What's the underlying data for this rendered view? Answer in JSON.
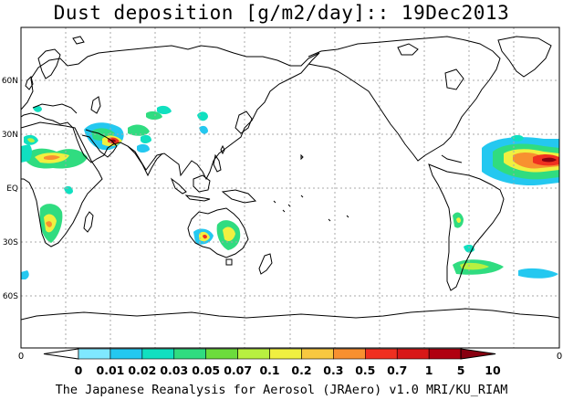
{
  "title": "Dust deposition [g/m2/day]:: 19Dec2013",
  "credit": "The Japanese Reanalysis for Aerosol (JRAero) v1.0 MRI/KU_RIAM",
  "lat_labels": [
    "60N",
    "30N",
    "EQ",
    "30S",
    "60S"
  ],
  "edge_labels": {
    "left": "0",
    "right": "0"
  },
  "colorbar": {
    "labels": [
      "0",
      "0.01",
      "0.02",
      "0.03",
      "0.05",
      "0.07",
      "0.1",
      "0.2",
      "0.3",
      "0.5",
      "0.7",
      "1",
      "5",
      "10"
    ],
    "colors": [
      "#ffffff",
      "#7fe8ff",
      "#24c8f0",
      "#10e0c0",
      "#30dc80",
      "#6cdc3c",
      "#b8f040",
      "#f0f040",
      "#f8c840",
      "#f89030",
      "#f03020",
      "#d81818",
      "#b00010",
      "#880010"
    ]
  },
  "colors": {
    "coast": "#000000",
    "grid": "#a8a8a8"
  }
}
